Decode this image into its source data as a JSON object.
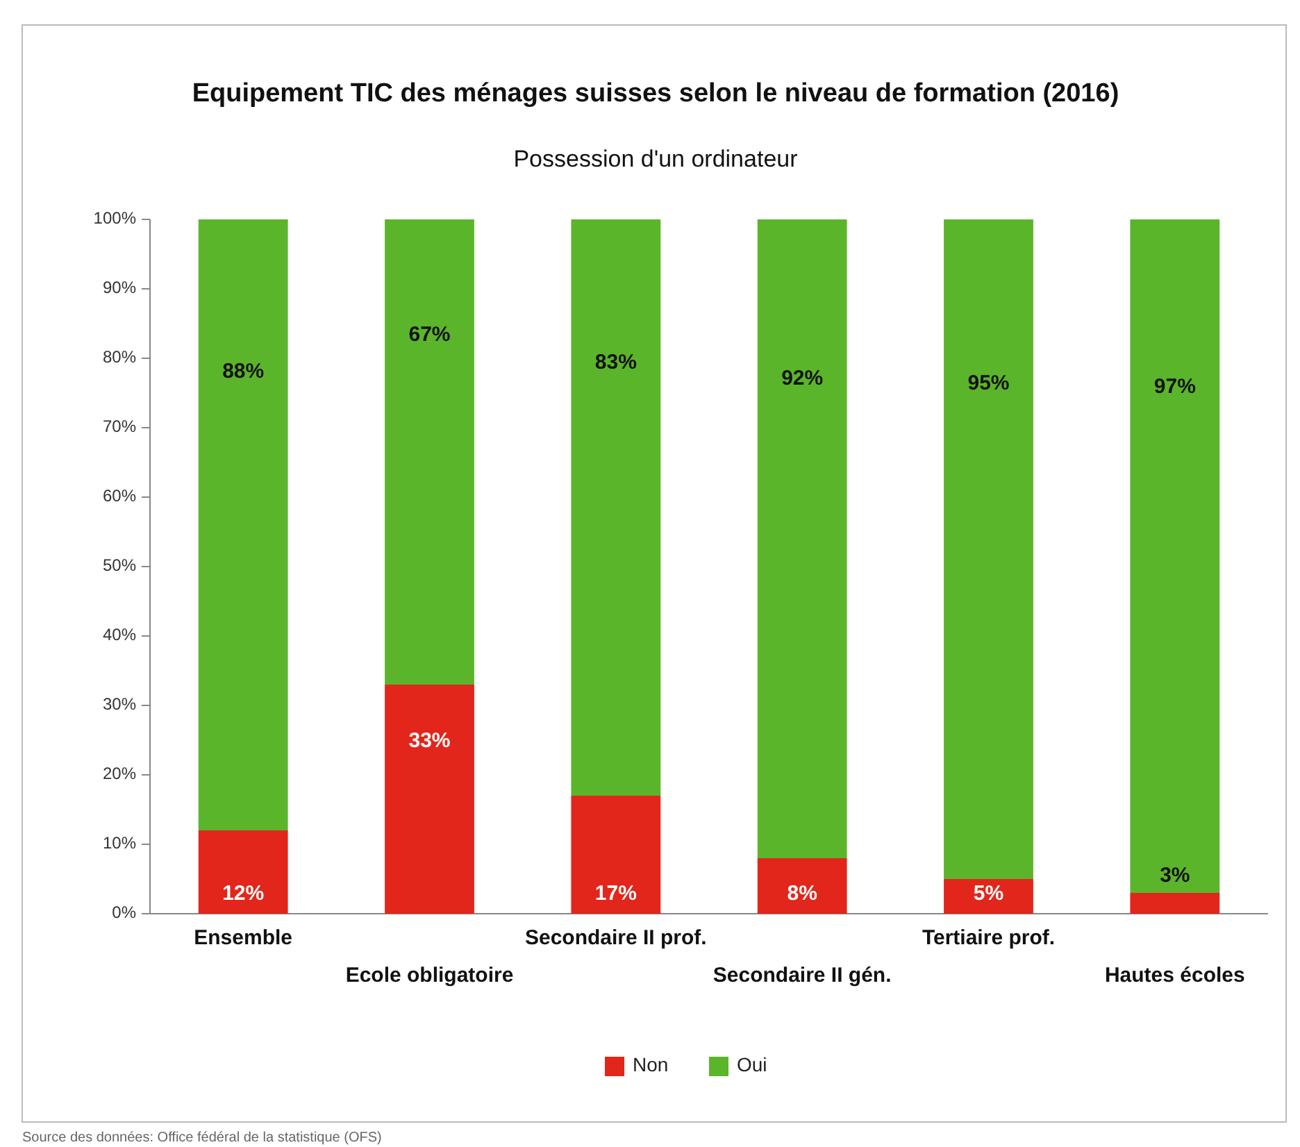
{
  "chart_data": {
    "type": "bar",
    "title": "Equipement TIC des ménages suisses selon le niveau de formation (2016)",
    "subtitle": "Possession d'un ordinateur",
    "categories": [
      "Ensemble",
      "Ecole obligatoire",
      "Secondaire II prof.",
      "Secondaire II gén.",
      "Tertiaire prof.",
      "Hautes écoles"
    ],
    "series": [
      {
        "name": "Non",
        "color": "#e2261b",
        "values": [
          12,
          33,
          17,
          8,
          5,
          3
        ],
        "value_labels": [
          "12%",
          "33%",
          "17%",
          "8%",
          "5%",
          "3%"
        ]
      },
      {
        "name": "Oui",
        "color": "#5bb52a",
        "values": [
          88,
          67,
          83,
          92,
          95,
          97
        ],
        "value_labels": [
          "88%",
          "67%",
          "83%",
          "92%",
          "95%",
          "97%"
        ]
      }
    ],
    "stacked": true,
    "ylim": [
      0,
      100
    ],
    "yticks": [
      {
        "value": 0,
        "label": "0%"
      },
      {
        "value": 10,
        "label": "10%"
      },
      {
        "value": 20,
        "label": "20%"
      },
      {
        "value": 30,
        "label": "30%"
      },
      {
        "value": 40,
        "label": "40%"
      },
      {
        "value": 50,
        "label": "50%"
      },
      {
        "value": 60,
        "label": "60%"
      },
      {
        "value": 70,
        "label": "70%"
      },
      {
        "value": 80,
        "label": "80%"
      },
      {
        "value": 90,
        "label": "90%"
      },
      {
        "value": 100,
        "label": "100%"
      }
    ],
    "legend": "bottom",
    "annotations": [
      "Source des données: Office fédéral de la statistique (OFS)"
    ]
  }
}
